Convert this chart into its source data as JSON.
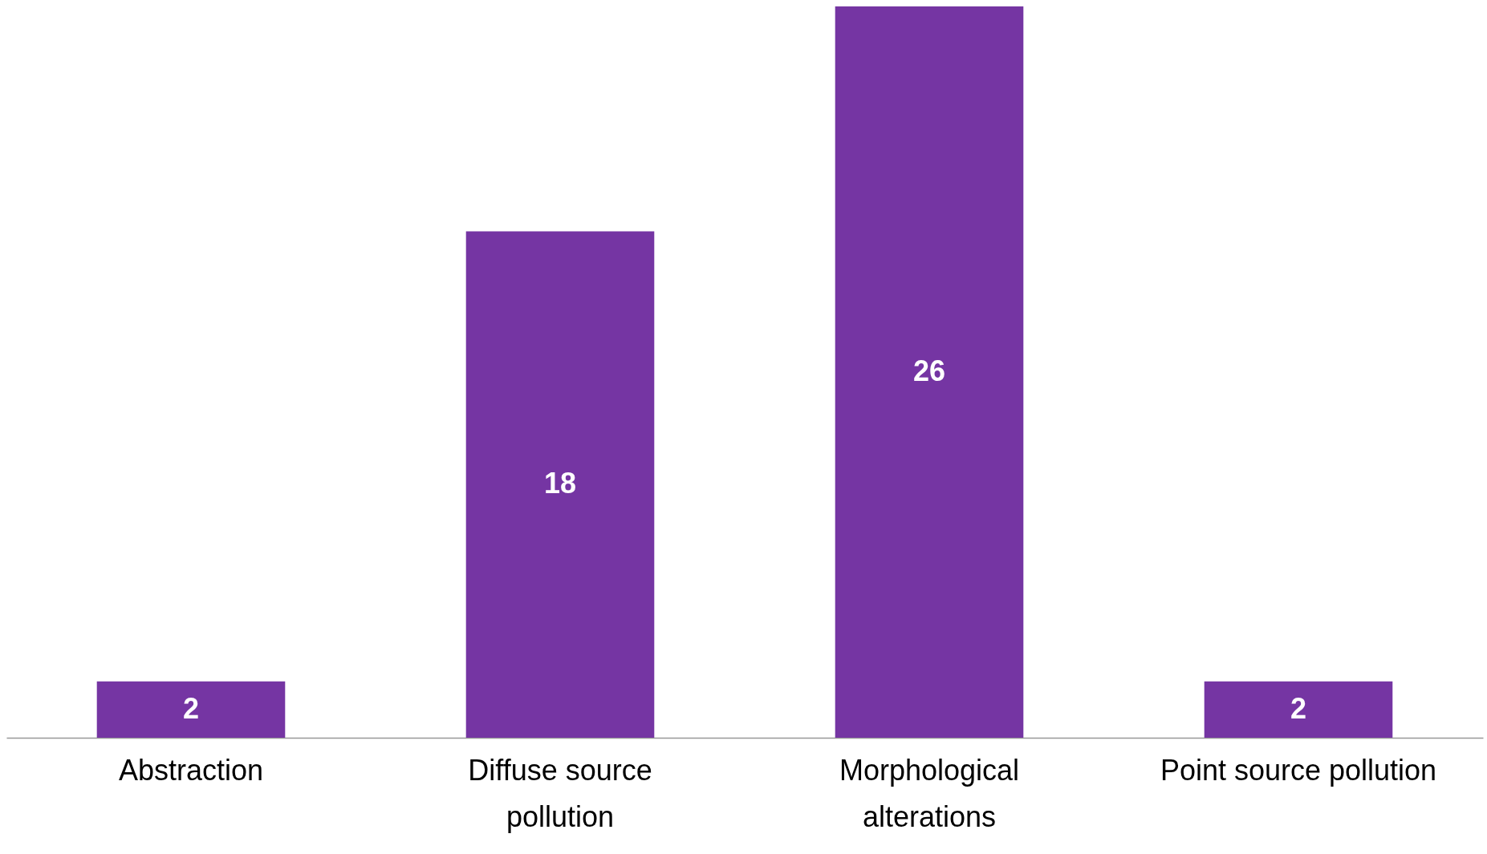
{
  "chart_data": {
    "type": "bar",
    "categories": [
      "Abstraction",
      "Diffuse source pollution",
      "Morphological alterations",
      "Point source pollution"
    ],
    "values": [
      2,
      18,
      26,
      2
    ],
    "color": "#7535a3",
    "data_labels": true
  }
}
